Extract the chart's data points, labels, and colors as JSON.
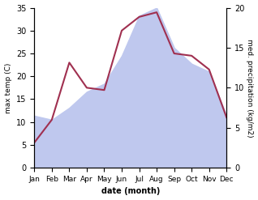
{
  "months": [
    "Jan",
    "Feb",
    "Mar",
    "Apr",
    "May",
    "Jun",
    "Jul",
    "Aug",
    "Sep",
    "Oct",
    "Nov",
    "Dec"
  ],
  "temp": [
    5.5,
    10.5,
    23.0,
    17.5,
    17.0,
    30.0,
    33.0,
    34.0,
    25.0,
    24.5,
    21.5,
    11.0
  ],
  "precip": [
    6.5,
    6.0,
    7.5,
    9.5,
    10.5,
    14.0,
    19.0,
    20.0,
    15.0,
    13.0,
    12.0,
    6.5
  ],
  "temp_color": "#a03050",
  "precip_fill_color": "#bfc8ee",
  "left_ylabel": "max temp (C)",
  "right_ylabel": "med. precipitation (kg/m2)",
  "xlabel": "date (month)",
  "ylim_left": [
    0,
    35
  ],
  "ylim_right": [
    0,
    20
  ],
  "yticks_left": [
    0,
    5,
    10,
    15,
    20,
    25,
    30,
    35
  ],
  "yticks_right": [
    0,
    5,
    10,
    15,
    20
  ],
  "bg_color": "#ffffff"
}
